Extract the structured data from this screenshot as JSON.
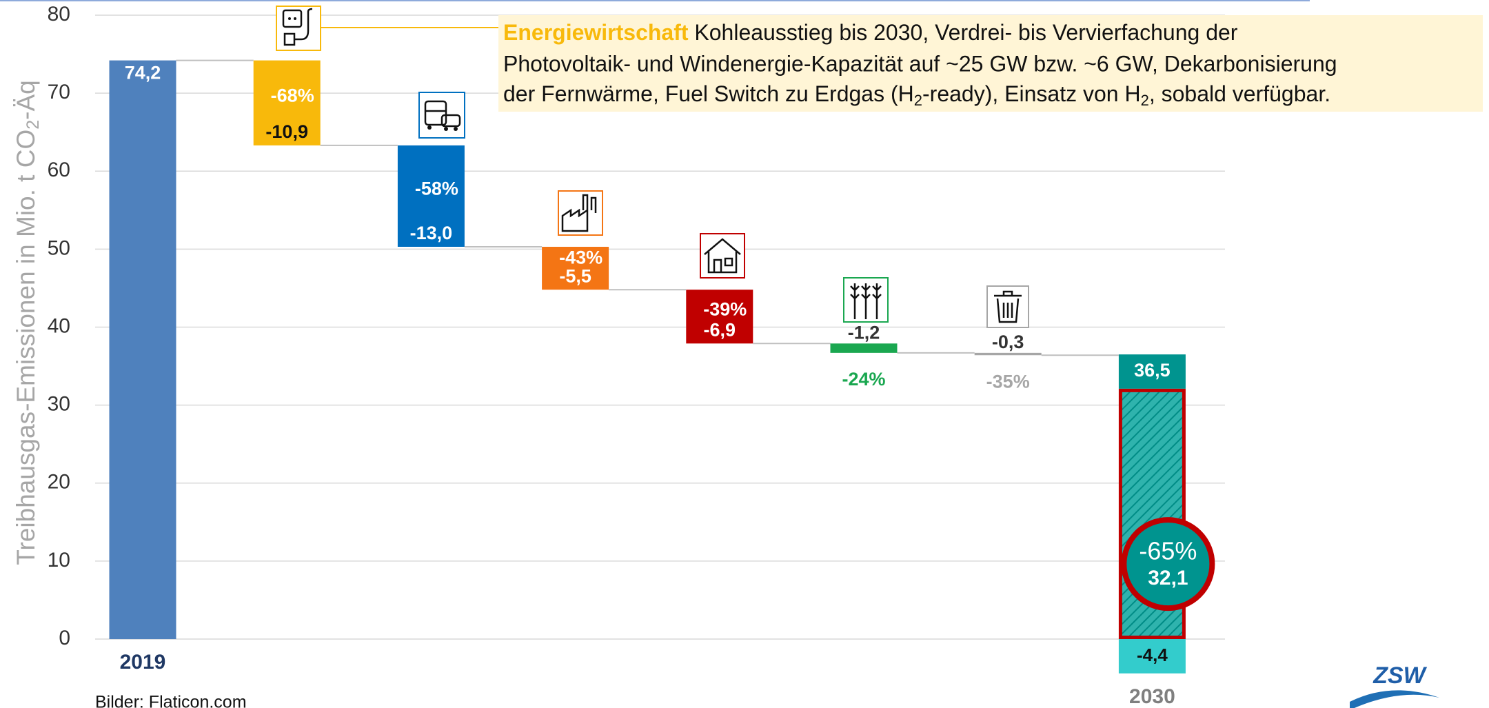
{
  "chart_data": {
    "type": "waterfall",
    "y_label": [
      "Treibhausgas-Emissionen in Mio. t CO",
      "2",
      "-Äq"
    ],
    "categories": [
      "2019",
      null,
      null,
      null,
      null,
      null,
      null,
      "2030"
    ],
    "values": [
      74.2,
      -10.9,
      -13.0,
      -5.5,
      -6.9,
      -1.2,
      -0.3,
      36.5
    ],
    "value_labels": [
      "74,2",
      "-10,9",
      "-13,0",
      "-5,5",
      "-6,9",
      "-1,2",
      "-0,3",
      "36,5"
    ],
    "percent": [
      null,
      -68,
      -58,
      -43,
      -39,
      -24,
      -35,
      -65
    ],
    "percent_labels": [
      null,
      "-68%",
      "-58%",
      "-43%",
      "-39%",
      "-24%",
      "-35%",
      "-65%"
    ],
    "colors": [
      "#4f81bd",
      "#f8b90b",
      "#0070c0",
      "#f47514",
      "#c00000",
      "#1aa750",
      "#a6a6a6",
      "#00948f"
    ],
    "net": 32.1,
    "net_label": "32,1",
    "offset": -4.4,
    "offset_label": "-4,4",
    "offset_color": "#33cccc",
    "ylim": [
      -5,
      80
    ],
    "yticks": [
      0,
      10,
      20,
      30,
      40,
      50,
      60,
      70,
      80
    ],
    "grid": true,
    "annotation": {
      "heading": "Energiewirtschaft",
      "line1": "Kohleausstieg bis 2030, Verdrei- bis Vervierfachung der",
      "line2": "Photovoltaik- und Windenergie-Kapazität auf ~25 GW bzw. ~6 GW, Dekarbonisierung",
      "line3": [
        "der Fernwärme, Fuel Switch zu Erdgas (H",
        "2",
        "-ready), Einsatz von H",
        "2",
        ", sobald verfügbar."
      ]
    },
    "footnote": "Bilder: Flaticon.com",
    "logo": "ZSW"
  }
}
